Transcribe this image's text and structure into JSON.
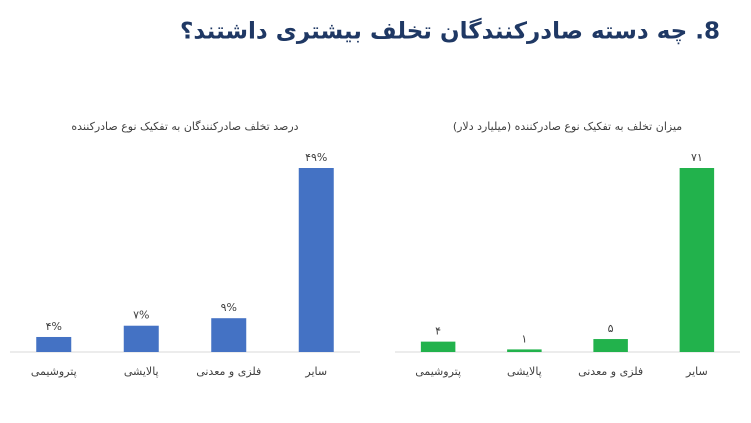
{
  "title": "8. چه دسته صادرکنندگان تخلف بیشتری داشتند؟",
  "chart_data": [
    {
      "type": "bar",
      "title": "درصد تخلف صادرکنندگان به تفکیک نوع صادرکننده",
      "categories": [
        "پتروشیمی",
        "پالایشی",
        "فلزی و معدنی",
        "سایر"
      ],
      "values": [
        4,
        7,
        9,
        49
      ],
      "value_labels": [
        "۴%",
        "۷%",
        "۹%",
        "۴۹%"
      ],
      "color": "#4472c4"
    },
    {
      "type": "bar",
      "title": "میزان تخلف به تفکیک نوع صادرکننده (میلیارد دلار)",
      "categories": [
        "پتروشیمی",
        "پالایشی",
        "فلزی و معدنی",
        "سایر"
      ],
      "values": [
        4,
        1,
        5,
        71
      ],
      "value_labels": [
        "۴",
        "۱",
        "۵",
        "۷۱"
      ],
      "color": "#22b24c"
    }
  ]
}
